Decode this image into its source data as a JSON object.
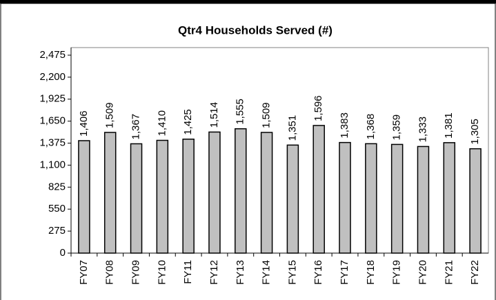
{
  "chart_data": {
    "type": "bar",
    "title": "Qtr4 Households Served (#)",
    "categories": [
      "FY07",
      "FY08",
      "FY09",
      "FY10",
      "FY11",
      "FY12",
      "FY13",
      "FY14",
      "FY15",
      "FY16",
      "FY17",
      "FY18",
      "FY19",
      "FY20",
      "FY21",
      "FY22"
    ],
    "values": [
      1406,
      1509,
      1367,
      1410,
      1425,
      1514,
      1555,
      1509,
      1351,
      1596,
      1383,
      1368,
      1359,
      1333,
      1381,
      1305
    ],
    "value_labels": [
      "1,406",
      "1,509",
      "1,367",
      "1,410",
      "1,425",
      "1,514",
      "1,555",
      "1,509",
      "1,351",
      "1,596",
      "1,383",
      "1,368",
      "1,359",
      "1,333",
      "1,381",
      "1,305"
    ],
    "color": "#c0c0c0",
    "ylim": [
      0,
      2475
    ],
    "yticks": [
      0,
      275,
      550,
      825,
      {
        "value": 1100,
        "label": "1,100"
      },
      {
        "value": 1375,
        "label": "1,375"
      },
      {
        "value": 1650,
        "label": "1,650"
      },
      {
        "value": 1925,
        "label": "1,925"
      },
      {
        "value": 2200,
        "label": "2,200"
      },
      {
        "value": 2475,
        "label": "2,475"
      }
    ],
    "grid": false
  }
}
